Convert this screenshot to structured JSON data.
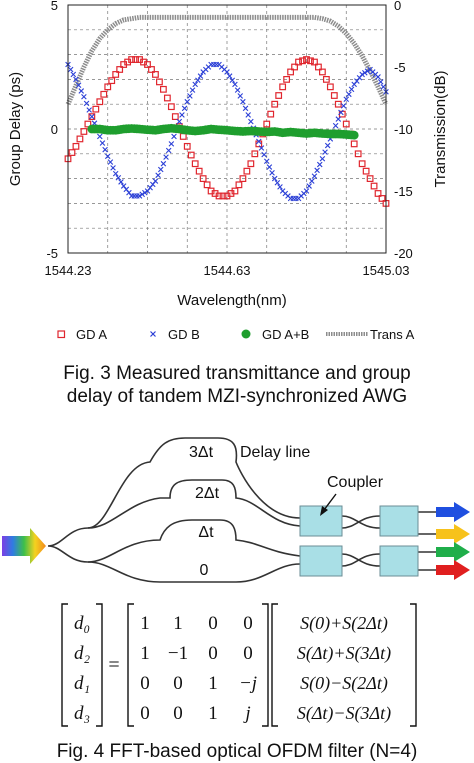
{
  "figure3": {
    "caption_line1": "Fig. 3 Measured transmittance and group",
    "caption_line2": "delay of tandem MZI-synchronized AWG",
    "chart_data": {
      "type": "scatter",
      "xlabel": "Wavelength(nm)",
      "ylabel": "Group Delay (ps)",
      "y2label": "Transmission(dB)",
      "xlim": [
        1544.23,
        1545.03
      ],
      "ylim": [
        -5,
        5
      ],
      "y2lim": [
        -20,
        0
      ],
      "x_ticks": [
        "1544.23",
        "1544.63",
        "1545.03"
      ],
      "y_ticks": [
        "5",
        "0",
        "-5"
      ],
      "y2_ticks": [
        "0",
        "-5",
        "-10",
        "-15",
        "-20"
      ],
      "grid": true,
      "legend_placement": "bottom",
      "series": [
        {
          "name": "GD A",
          "marker": "square",
          "color": "#e0262e",
          "axis": "left",
          "x": [
            1544.23,
            1544.25,
            1544.27,
            1544.29,
            1544.31,
            1544.33,
            1544.35,
            1544.37,
            1544.39,
            1544.41,
            1544.43,
            1544.45,
            1544.47,
            1544.49,
            1544.51,
            1544.53,
            1544.55,
            1544.57,
            1544.59,
            1544.61,
            1544.63,
            1544.65,
            1544.67,
            1544.69,
            1544.71,
            1544.73,
            1544.75,
            1544.77,
            1544.79,
            1544.81,
            1544.83,
            1544.85,
            1544.87,
            1544.89,
            1544.91,
            1544.93,
            1544.95,
            1544.97,
            1544.99,
            1545.01,
            1545.03
          ],
          "y": [
            -1.2,
            -0.7,
            -0.1,
            0.5,
            1.1,
            1.7,
            2.2,
            2.6,
            2.8,
            2.8,
            2.6,
            2.2,
            1.6,
            0.9,
            0.1,
            -0.7,
            -1.4,
            -2.0,
            -2.5,
            -2.7,
            -2.7,
            -2.5,
            -2.0,
            -1.4,
            -0.6,
            0.2,
            1.0,
            1.7,
            2.3,
            2.7,
            2.8,
            2.7,
            2.3,
            1.7,
            1.0,
            0.2,
            -0.6,
            -1.4,
            -2.0,
            -2.6,
            -3.0
          ]
        },
        {
          "name": "GD B",
          "marker": "x",
          "color": "#2b3fd6",
          "axis": "left",
          "x": [
            1544.23,
            1544.25,
            1544.27,
            1544.29,
            1544.31,
            1544.33,
            1544.35,
            1544.37,
            1544.39,
            1544.41,
            1544.43,
            1544.45,
            1544.47,
            1544.49,
            1544.51,
            1544.53,
            1544.55,
            1544.57,
            1544.59,
            1544.61,
            1544.63,
            1544.65,
            1544.67,
            1544.69,
            1544.71,
            1544.73,
            1544.75,
            1544.77,
            1544.79,
            1544.81,
            1544.83,
            1544.85,
            1544.87,
            1544.89,
            1544.91,
            1544.93,
            1544.95,
            1544.97,
            1544.99,
            1545.01,
            1545.03
          ],
          "y": [
            2.6,
            2.0,
            1.3,
            0.5,
            -0.3,
            -1.1,
            -1.8,
            -2.3,
            -2.7,
            -2.7,
            -2.5,
            -2.1,
            -1.4,
            -0.6,
            0.3,
            1.1,
            1.8,
            2.3,
            2.6,
            2.6,
            2.3,
            1.8,
            1.1,
            0.3,
            -0.5,
            -1.3,
            -2.0,
            -2.5,
            -2.8,
            -2.8,
            -2.5,
            -1.9,
            -1.2,
            -0.4,
            0.4,
            1.2,
            1.8,
            2.2,
            2.4,
            2.1,
            1.5
          ]
        },
        {
          "name": "GD A+B",
          "marker": "circle",
          "color": "#1f9e2e",
          "axis": "left",
          "x": [
            1544.29,
            1544.31,
            1544.33,
            1544.35,
            1544.37,
            1544.39,
            1544.41,
            1544.43,
            1544.45,
            1544.47,
            1544.49,
            1544.51,
            1544.53,
            1544.55,
            1544.57,
            1544.59,
            1544.61,
            1544.63,
            1544.65,
            1544.67,
            1544.69,
            1544.71,
            1544.73,
            1544.75,
            1544.77,
            1544.79,
            1544.81,
            1544.83,
            1544.85,
            1544.87,
            1544.89,
            1544.91,
            1544.93,
            1544.95
          ],
          "y": [
            0.0,
            0.0,
            -0.05,
            -0.05,
            0.0,
            0.02,
            0.0,
            -0.03,
            -0.05,
            0.0,
            0.03,
            0.0,
            -0.05,
            -0.08,
            -0.05,
            0.0,
            -0.03,
            -0.05,
            -0.08,
            -0.1,
            -0.08,
            -0.1,
            -0.12,
            -0.1,
            -0.15,
            -0.12,
            -0.15,
            -0.18,
            -0.15,
            -0.18,
            -0.2,
            -0.2,
            -0.22,
            -0.25
          ]
        },
        {
          "name": "Trans A",
          "marker": "line",
          "color": "#8c8c8c",
          "axis": "right",
          "x": [
            1544.23,
            1544.25,
            1544.27,
            1544.29,
            1544.31,
            1544.33,
            1544.35,
            1544.37,
            1544.39,
            1544.41,
            1544.43,
            1544.45,
            1544.47,
            1544.49,
            1544.51,
            1544.53,
            1544.55,
            1544.57,
            1544.59,
            1544.61,
            1544.63,
            1544.65,
            1544.67,
            1544.69,
            1544.71,
            1544.73,
            1544.75,
            1544.77,
            1544.79,
            1544.81,
            1544.83,
            1544.85,
            1544.87,
            1544.89,
            1544.91,
            1544.93,
            1544.95,
            1544.97,
            1544.99,
            1545.01,
            1545.03
          ],
          "y": [
            -8.0,
            -6.5,
            -5.0,
            -3.7,
            -2.7,
            -2.0,
            -1.5,
            -1.2,
            -1.1,
            -1.0,
            -1.0,
            -1.0,
            -1.0,
            -1.0,
            -1.0,
            -1.0,
            -1.0,
            -1.0,
            -1.0,
            -1.0,
            -1.0,
            -1.0,
            -1.0,
            -1.0,
            -1.0,
            -1.0,
            -1.0,
            -1.0,
            -1.0,
            -1.0,
            -1.0,
            -1.0,
            -1.1,
            -1.3,
            -1.7,
            -2.3,
            -3.1,
            -4.1,
            -5.3,
            -6.6,
            -8.0
          ]
        }
      ]
    }
  },
  "figure4": {
    "label_3dt": "3Δt",
    "label_2dt": "2Δt",
    "label_dt": "Δt",
    "label_0": "0",
    "label_delay_line": "Delay line",
    "label_coupler": "Coupler",
    "caption": "Fig. 4 FFT-based optical OFDM filter (N=4)",
    "arrow_colors": [
      "#1f4fe0",
      "#f7c21b",
      "#1fae4a",
      "#e01f1f"
    ],
    "equation": {
      "lhs": [
        "d₀",
        "d₂",
        "d₁",
        "d₃"
      ],
      "equals": "=",
      "matrix": [
        [
          "1",
          "1",
          "0",
          "0"
        ],
        [
          "1",
          "−1",
          "0",
          "0"
        ],
        [
          "0",
          "0",
          "1",
          "−j"
        ],
        [
          "0",
          "0",
          "1",
          "j"
        ]
      ],
      "rhs": [
        "S(0)+S(2Δt)",
        "S(Δt)+S(3Δt)",
        "S(0)−S(2Δt)",
        "S(Δt)−S(3Δt)"
      ]
    }
  }
}
